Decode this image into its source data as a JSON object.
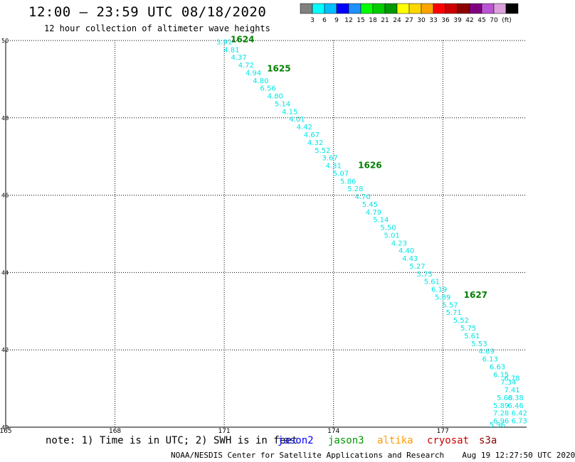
{
  "header": {
    "title": "12:00 – 23:59 UTC 08/18/2020",
    "subtitle": "12 hour collection of altimeter wave heights"
  },
  "colorbar": {
    "unit": "(ft)",
    "colors": [
      "#808080",
      "#00ffff",
      "#00bfff",
      "#0000ff",
      "#1e90ff",
      "#00ff00",
      "#00cc00",
      "#009900",
      "#ffff00",
      "#ffd700",
      "#ffa500",
      "#ff0000",
      "#cc0000",
      "#8b0000",
      "#800080",
      "#ba55d3",
      "#dda0dd",
      "#000000"
    ],
    "labels": [
      "3",
      "6",
      "9",
      "12",
      "15",
      "18",
      "21",
      "24",
      "27",
      "30",
      "33",
      "36",
      "39",
      "42",
      "45",
      "70"
    ]
  },
  "map": {
    "lon_ticks": [
      "165",
      "168",
      "171",
      "174",
      "177"
    ],
    "lat_ticks": [
      "40",
      "42",
      "44",
      "46",
      "48",
      "50"
    ],
    "lon_range": [
      165,
      179.3
    ],
    "lat_range": [
      40,
      50
    ],
    "grid": "dotted",
    "point_color": "#00e5e5",
    "time_color": "#008000",
    "track_points": [
      {
        "lon": 171.0,
        "lat": 49.9,
        "v": "3.91"
      },
      {
        "lon": 171.2,
        "lat": 49.7,
        "v": "4.81"
      },
      {
        "lon": 171.4,
        "lat": 49.5,
        "v": "4.37"
      },
      {
        "lon": 171.6,
        "lat": 49.3,
        "v": "4.72"
      },
      {
        "lon": 171.8,
        "lat": 49.1,
        "v": "4.94"
      },
      {
        "lon": 172.0,
        "lat": 48.9,
        "v": "4.80"
      },
      {
        "lon": 172.2,
        "lat": 48.7,
        "v": "6.56"
      },
      {
        "lon": 172.4,
        "lat": 48.5,
        "v": "4.80"
      },
      {
        "lon": 172.6,
        "lat": 48.3,
        "v": "5.14"
      },
      {
        "lon": 172.8,
        "lat": 48.1,
        "v": "4.15"
      },
      {
        "lon": 173.0,
        "lat": 47.9,
        "v": "4.01"
      },
      {
        "lon": 173.2,
        "lat": 47.7,
        "v": "4.42"
      },
      {
        "lon": 173.4,
        "lat": 47.5,
        "v": "4.67"
      },
      {
        "lon": 173.5,
        "lat": 47.3,
        "v": "4.32"
      },
      {
        "lon": 173.7,
        "lat": 47.1,
        "v": "5.52"
      },
      {
        "lon": 173.9,
        "lat": 46.9,
        "v": "3.67"
      },
      {
        "lon": 174.0,
        "lat": 46.7,
        "v": "4.31"
      },
      {
        "lon": 174.2,
        "lat": 46.5,
        "v": "5.07"
      },
      {
        "lon": 174.4,
        "lat": 46.3,
        "v": "5.86"
      },
      {
        "lon": 174.6,
        "lat": 46.1,
        "v": "5.28"
      },
      {
        "lon": 174.8,
        "lat": 45.9,
        "v": "4.70"
      },
      {
        "lon": 175.0,
        "lat": 45.7,
        "v": "5.45"
      },
      {
        "lon": 175.1,
        "lat": 45.5,
        "v": "4.79"
      },
      {
        "lon": 175.3,
        "lat": 45.3,
        "v": "5.14"
      },
      {
        "lon": 175.5,
        "lat": 45.1,
        "v": "5.50"
      },
      {
        "lon": 175.6,
        "lat": 44.9,
        "v": "5.01"
      },
      {
        "lon": 175.8,
        "lat": 44.7,
        "v": "4.23"
      },
      {
        "lon": 176.0,
        "lat": 44.5,
        "v": "4.40"
      },
      {
        "lon": 176.1,
        "lat": 44.3,
        "v": "4.43"
      },
      {
        "lon": 176.3,
        "lat": 44.1,
        "v": "5.27"
      },
      {
        "lon": 176.5,
        "lat": 43.9,
        "v": "5.75"
      },
      {
        "lon": 176.7,
        "lat": 43.7,
        "v": "5.61"
      },
      {
        "lon": 176.9,
        "lat": 43.5,
        "v": "6.19"
      },
      {
        "lon": 177.0,
        "lat": 43.3,
        "v": "5.89"
      },
      {
        "lon": 177.2,
        "lat": 43.1,
        "v": "5.57"
      },
      {
        "lon": 177.3,
        "lat": 42.9,
        "v": "5.71"
      },
      {
        "lon": 177.5,
        "lat": 42.7,
        "v": "5.52"
      },
      {
        "lon": 177.7,
        "lat": 42.5,
        "v": "5.75"
      },
      {
        "lon": 177.8,
        "lat": 42.3,
        "v": "5.61"
      },
      {
        "lon": 178.0,
        "lat": 42.1,
        "v": "5.53"
      },
      {
        "lon": 178.2,
        "lat": 41.9,
        "v": "4.69"
      },
      {
        "lon": 178.3,
        "lat": 41.7,
        "v": "6.13"
      },
      {
        "lon": 178.5,
        "lat": 41.5,
        "v": "6.63"
      },
      {
        "lon": 178.6,
        "lat": 41.3,
        "v": "6.15"
      },
      {
        "lon": 178.8,
        "lat": 41.1,
        "v": "7.34"
      },
      {
        "lon": 178.9,
        "lat": 40.9,
        "v": "7.41"
      },
      {
        "lon": 179.0,
        "lat": 40.7,
        "v": "6.38"
      },
      {
        "lon": 179.0,
        "lat": 40.5,
        "v": "6.46"
      },
      {
        "lon": 179.1,
        "lat": 40.3,
        "v": "6.42"
      },
      {
        "lon": 179.1,
        "lat": 40.1,
        "v": "6.73"
      },
      {
        "lon": 178.9,
        "lat": 41.2,
        "v": "6.78"
      },
      {
        "lon": 178.7,
        "lat": 40.7,
        "v": "5.68"
      },
      {
        "lon": 178.6,
        "lat": 40.5,
        "v": "5.89"
      },
      {
        "lon": 178.6,
        "lat": 40.3,
        "v": "7.28"
      },
      {
        "lon": 178.6,
        "lat": 40.1,
        "v": "6.96"
      },
      {
        "lon": 178.5,
        "lat": 40.0,
        "v": "5.96"
      }
    ],
    "time_labels": [
      {
        "lon": 171.5,
        "lat": 49.95,
        "t": "1624"
      },
      {
        "lon": 172.5,
        "lat": 49.2,
        "t": "1625"
      },
      {
        "lon": 175.0,
        "lat": 46.7,
        "t": "1626"
      },
      {
        "lon": 177.9,
        "lat": 43.35,
        "t": "1627"
      }
    ]
  },
  "legend": {
    "note": "note: 1) Time is in UTC; 2) SWH is in feet",
    "satellites": [
      {
        "name": "jason2",
        "color": "#0000ff"
      },
      {
        "name": "jason3",
        "color": "#009900"
      },
      {
        "name": "altika",
        "color": "#ff9900"
      },
      {
        "name": "cryosat",
        "color": "#cc0000"
      },
      {
        "name": "s3a",
        "color": "#8b0000"
      }
    ]
  },
  "footer": {
    "credit": "NOAA/NESDIS Center for Satellite Applications and Research",
    "timestamp": "Aug 19 12:27:50 UTC 2020"
  }
}
